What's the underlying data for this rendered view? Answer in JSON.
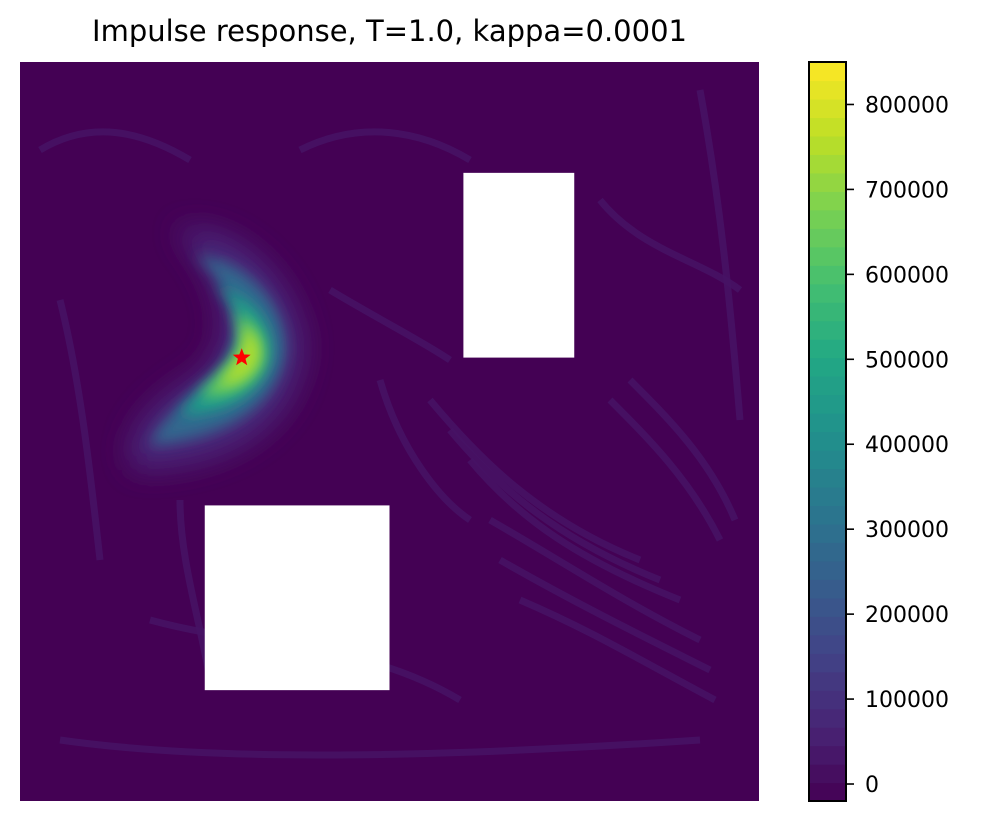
{
  "chart_data": {
    "type": "heatmap",
    "title": "Impulse response, T=1.0, kappa=0.0001",
    "xlabel": "",
    "ylabel": "",
    "colormap": "viridis",
    "colorbar": {
      "vmin": -20000,
      "vmax": 850000,
      "ticks": [
        0,
        100000,
        200000,
        300000,
        400000,
        500000,
        600000,
        700000,
        800000
      ],
      "tick_labels": [
        "0",
        "100000",
        "200000",
        "300000",
        "400000",
        "500000",
        "600000",
        "700000",
        "800000"
      ],
      "levels": 40
    },
    "domain": {
      "x": [
        0,
        1
      ],
      "y": [
        0,
        1
      ]
    },
    "axes_visible": false,
    "obstacles": [
      {
        "name": "upper-right hole",
        "x": [
          0.6,
          0.75
        ],
        "y": [
          0.6,
          0.85
        ]
      },
      {
        "name": "lower-left hole",
        "x": [
          0.25,
          0.5
        ],
        "y": [
          0.15,
          0.4
        ]
      }
    ],
    "source_point": {
      "x": 0.3,
      "y": 0.6,
      "marker": "star",
      "color": "#ff0000"
    },
    "peak_value": 830000,
    "background_value": 0
  }
}
